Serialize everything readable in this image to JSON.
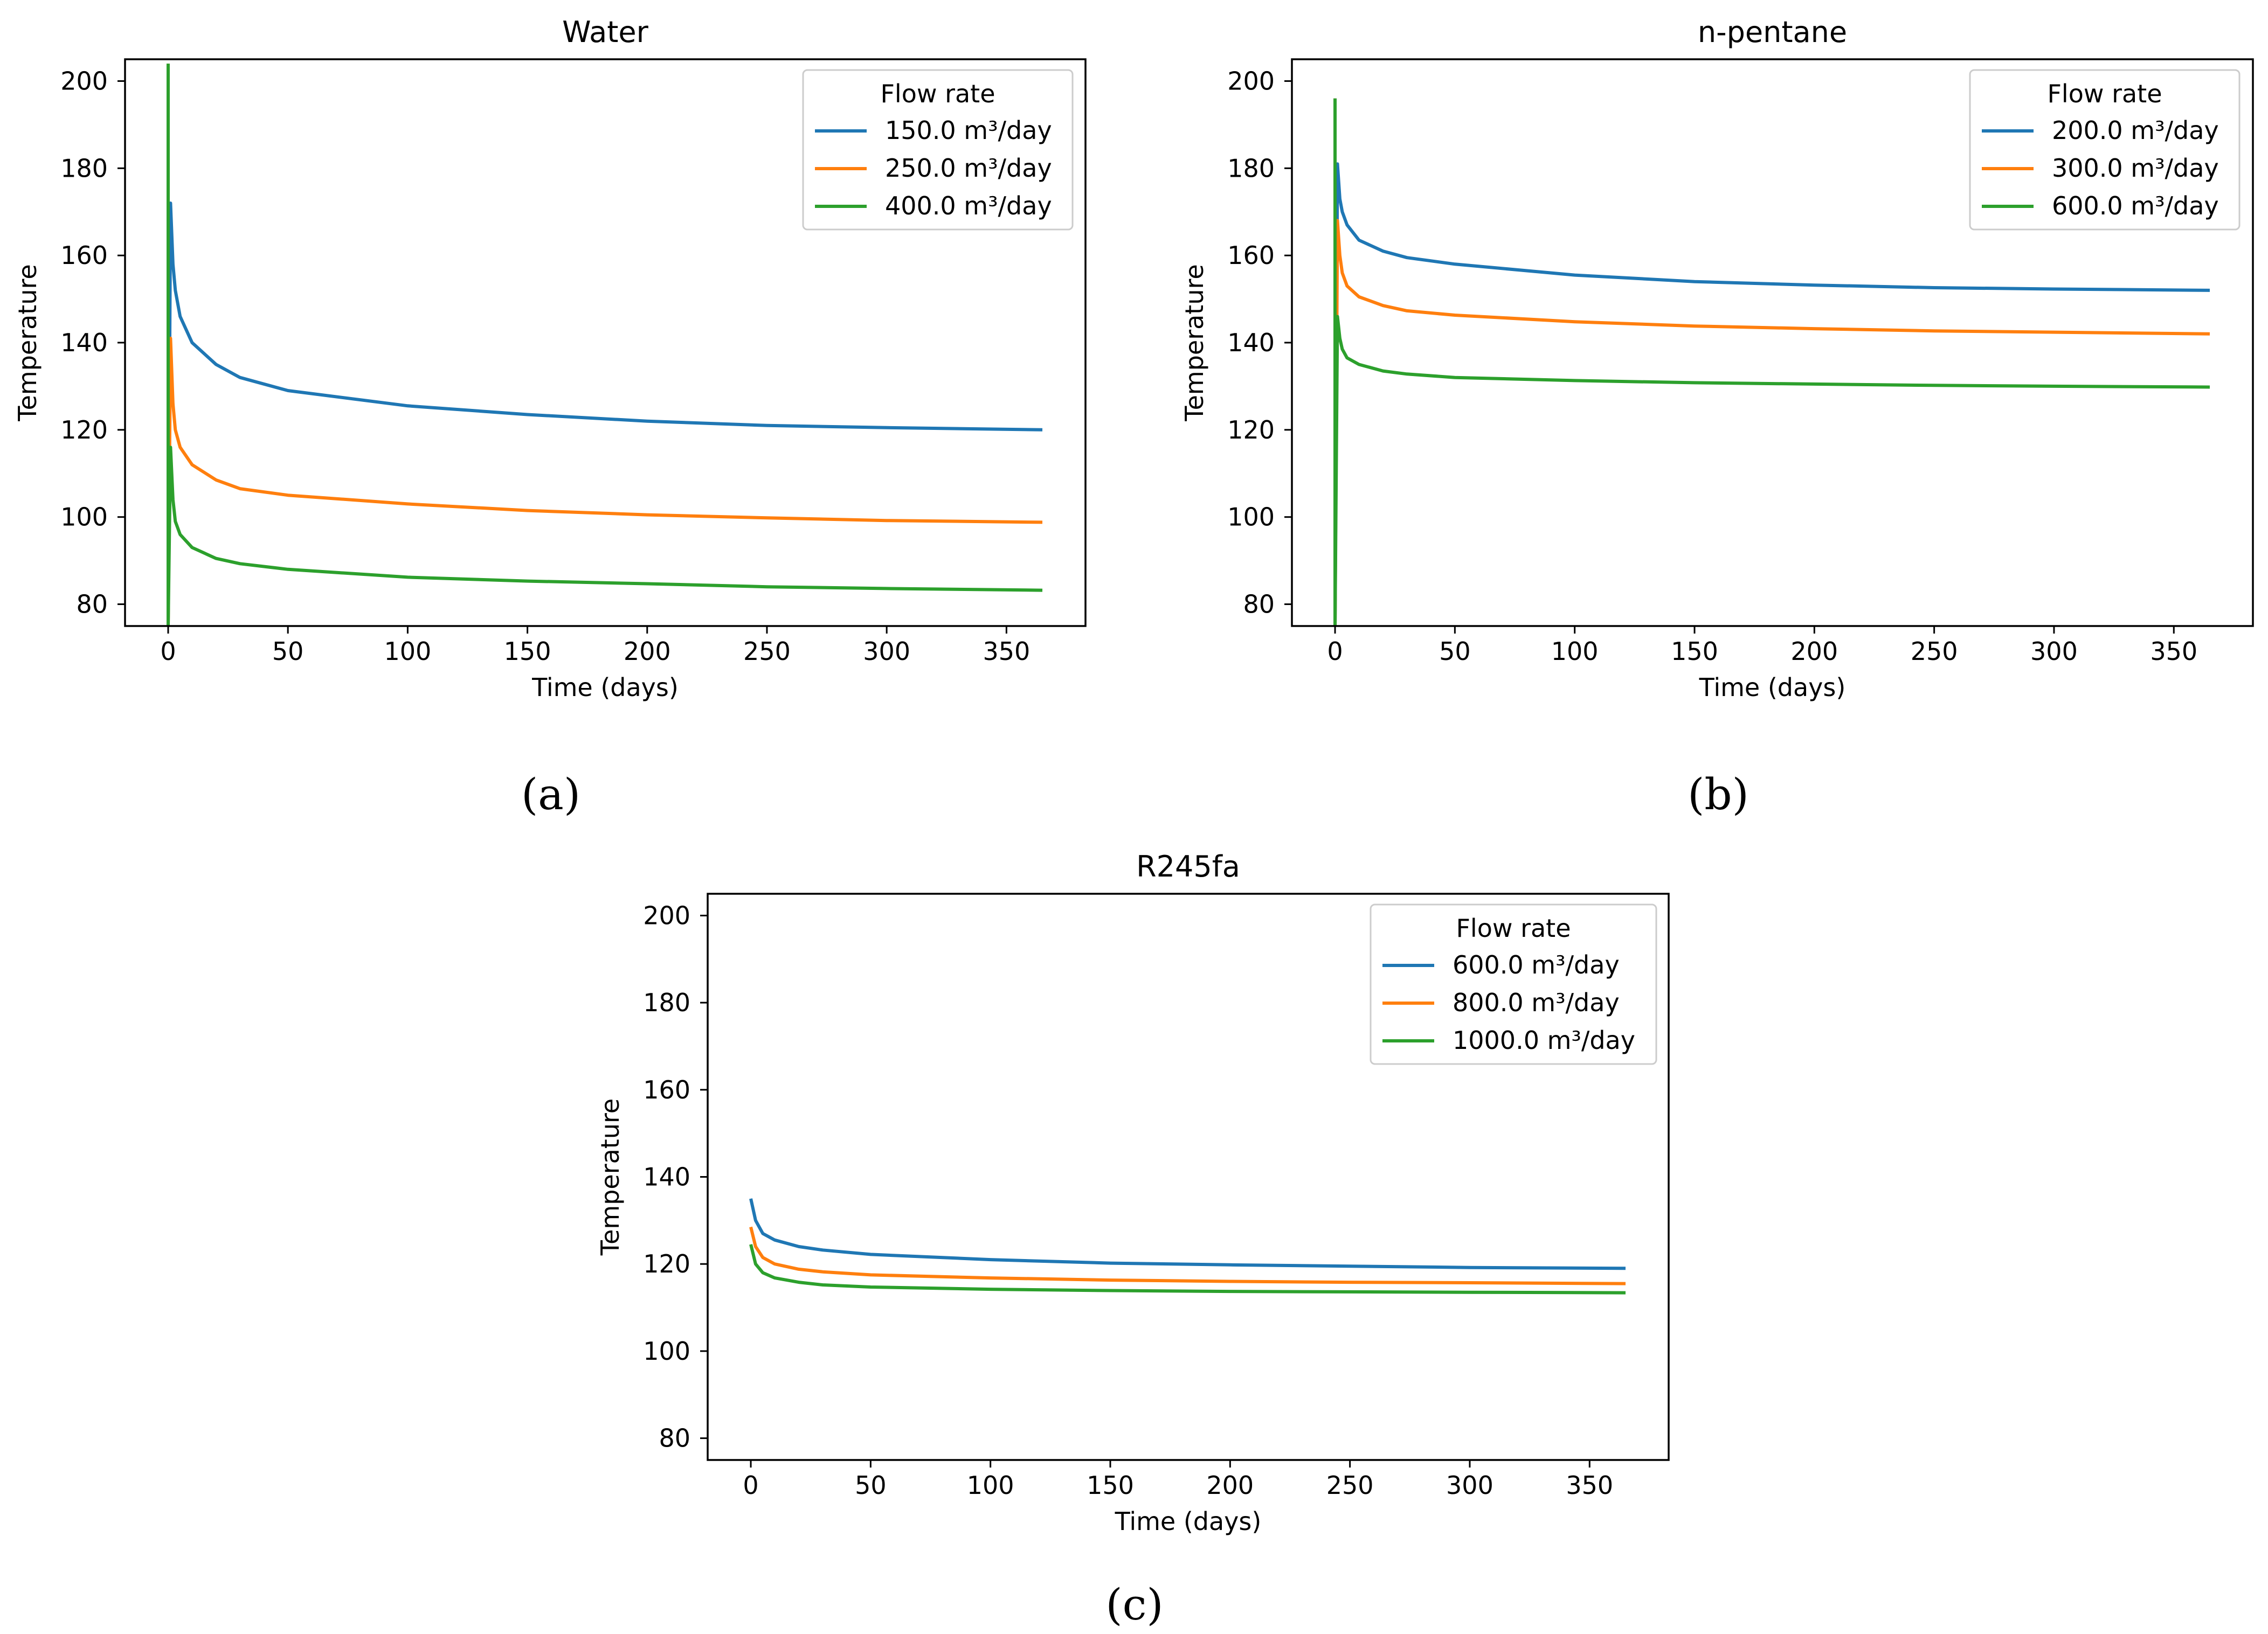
{
  "figure": {
    "panel_labels": [
      "(a)",
      "(b)",
      "(c)"
    ]
  },
  "chart_data": [
    {
      "type": "line",
      "title": "Water",
      "xlabel": "Time (days)",
      "ylabel": "Temperature",
      "xlim": [
        -18,
        383
      ],
      "ylim": [
        75,
        205
      ],
      "xticks": [
        0,
        50,
        100,
        150,
        200,
        250,
        300,
        350
      ],
      "yticks": [
        80,
        100,
        120,
        140,
        160,
        180,
        200
      ],
      "legend": {
        "title": "Flow rate",
        "position": "top-right"
      },
      "series": [
        {
          "name": "150.0 m³/day",
          "color": "#1f77b4",
          "start_value": 204,
          "x": [
            0,
            1,
            2,
            3,
            5,
            10,
            20,
            30,
            50,
            100,
            150,
            200,
            250,
            300,
            365
          ],
          "values": [
            75,
            172,
            158,
            152,
            146,
            140,
            135,
            132,
            129,
            125.5,
            123.5,
            122,
            121,
            120.5,
            120
          ]
        },
        {
          "name": "250.0 m³/day",
          "color": "#ff7f0e",
          "start_value": 204,
          "x": [
            0,
            1,
            2,
            3,
            5,
            10,
            20,
            30,
            50,
            100,
            150,
            200,
            250,
            300,
            365
          ],
          "values": [
            75,
            141,
            126,
            120,
            116,
            112,
            108.5,
            106.5,
            105,
            103,
            101.5,
            100.5,
            99.8,
            99.2,
            98.8
          ]
        },
        {
          "name": "400.0 m³/day",
          "color": "#2ca02c",
          "start_value": 204,
          "x": [
            0,
            1,
            2,
            3,
            5,
            10,
            20,
            30,
            50,
            100,
            150,
            200,
            250,
            300,
            365
          ],
          "values": [
            75,
            116,
            104,
            99,
            96,
            93,
            90.5,
            89.3,
            88,
            86.2,
            85.3,
            84.7,
            84,
            83.6,
            83.2
          ]
        }
      ]
    },
    {
      "type": "line",
      "title": "n-pentane",
      "xlabel": "Time (days)",
      "ylabel": "Temperature",
      "xlim": [
        -18,
        383
      ],
      "ylim": [
        75,
        205
      ],
      "xticks": [
        0,
        50,
        100,
        150,
        200,
        250,
        300,
        350
      ],
      "yticks": [
        80,
        100,
        120,
        140,
        160,
        180,
        200
      ],
      "legend": {
        "title": "Flow rate",
        "position": "top-right"
      },
      "series": [
        {
          "name": "200.0 m³/day",
          "color": "#1f77b4",
          "start_value": 196,
          "x": [
            0,
            1,
            2,
            3,
            5,
            10,
            20,
            30,
            50,
            100,
            150,
            200,
            250,
            300,
            365
          ],
          "values": [
            75,
            181,
            173,
            170,
            167,
            163.5,
            161,
            159.5,
            158,
            155.5,
            154,
            153.2,
            152.6,
            152.3,
            152
          ]
        },
        {
          "name": "300.0 m³/day",
          "color": "#ff7f0e",
          "start_value": 196,
          "x": [
            0,
            1,
            2,
            3,
            5,
            10,
            20,
            30,
            50,
            100,
            150,
            200,
            250,
            300,
            365
          ],
          "values": [
            75,
            168,
            160,
            156,
            153,
            150.5,
            148.5,
            147.3,
            146.3,
            144.8,
            143.8,
            143.2,
            142.7,
            142.4,
            142
          ]
        },
        {
          "name": "600.0 m³/day",
          "color": "#2ca02c",
          "start_value": 196,
          "x": [
            0,
            1,
            2,
            3,
            5,
            10,
            20,
            30,
            50,
            100,
            150,
            200,
            250,
            300,
            365
          ],
          "values": [
            75,
            146,
            141,
            138.5,
            136.5,
            135,
            133.5,
            132.8,
            132,
            131.3,
            130.8,
            130.5,
            130.2,
            130,
            129.8
          ]
        }
      ]
    },
    {
      "type": "line",
      "title": "R245fa",
      "xlabel": "Time (days)",
      "ylabel": "Temperature",
      "xlim": [
        -18,
        383
      ],
      "ylim": [
        75,
        205
      ],
      "xticks": [
        0,
        50,
        100,
        150,
        200,
        250,
        300,
        350
      ],
      "yticks": [
        80,
        100,
        120,
        140,
        160,
        180,
        200
      ],
      "legend": {
        "title": "Flow rate",
        "position": "top-right"
      },
      "series": [
        {
          "name": "600.0 m³/day",
          "color": "#1f77b4",
          "x": [
            0,
            2,
            5,
            10,
            20,
            30,
            50,
            100,
            150,
            200,
            250,
            300,
            365
          ],
          "values": [
            135,
            130,
            127,
            125.5,
            124,
            123.2,
            122.2,
            121,
            120.2,
            119.8,
            119.5,
            119.2,
            119
          ]
        },
        {
          "name": "800.0 m³/day",
          "color": "#ff7f0e",
          "x": [
            0,
            2,
            5,
            10,
            20,
            30,
            50,
            100,
            150,
            200,
            250,
            300,
            365
          ],
          "values": [
            128.5,
            124,
            121.5,
            120,
            118.8,
            118.2,
            117.5,
            116.8,
            116.3,
            116,
            115.8,
            115.7,
            115.5
          ]
        },
        {
          "name": "1000.0 m³/day",
          "color": "#2ca02c",
          "x": [
            0,
            2,
            5,
            10,
            20,
            30,
            50,
            100,
            150,
            200,
            250,
            300,
            365
          ],
          "values": [
            124.5,
            120,
            118,
            116.8,
            115.8,
            115.2,
            114.7,
            114.2,
            113.9,
            113.7,
            113.6,
            113.5,
            113.4
          ]
        }
      ]
    }
  ]
}
